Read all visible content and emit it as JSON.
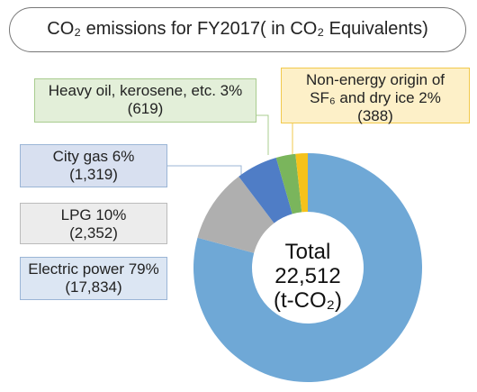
{
  "chart_data": {
    "type": "donut",
    "title": "CO₂ emissions for FY2017( in CO₂ Equivalents)",
    "categories": [
      "Electric power 79%",
      "LPG 10%",
      "City gas 6%",
      "Heavy oil, kerosene, etc. 3%",
      "Non-energy origin of\nSF₆ and dry ice 2%"
    ],
    "values": [
      17834,
      2352,
      1319,
      619,
      388
    ],
    "value_labels": [
      "(17,834)",
      "(2,352)",
      "(1,319)",
      "(619)",
      "(388)"
    ],
    "colors": [
      "#6fa8d6",
      "#afafaf",
      "#4f7dc6",
      "#7ab55c",
      "#f5c21b"
    ],
    "total_title": "Total",
    "total": {
      "value": 22512,
      "label": "22,512"
    },
    "total_unit": "(t-CO₂)"
  }
}
